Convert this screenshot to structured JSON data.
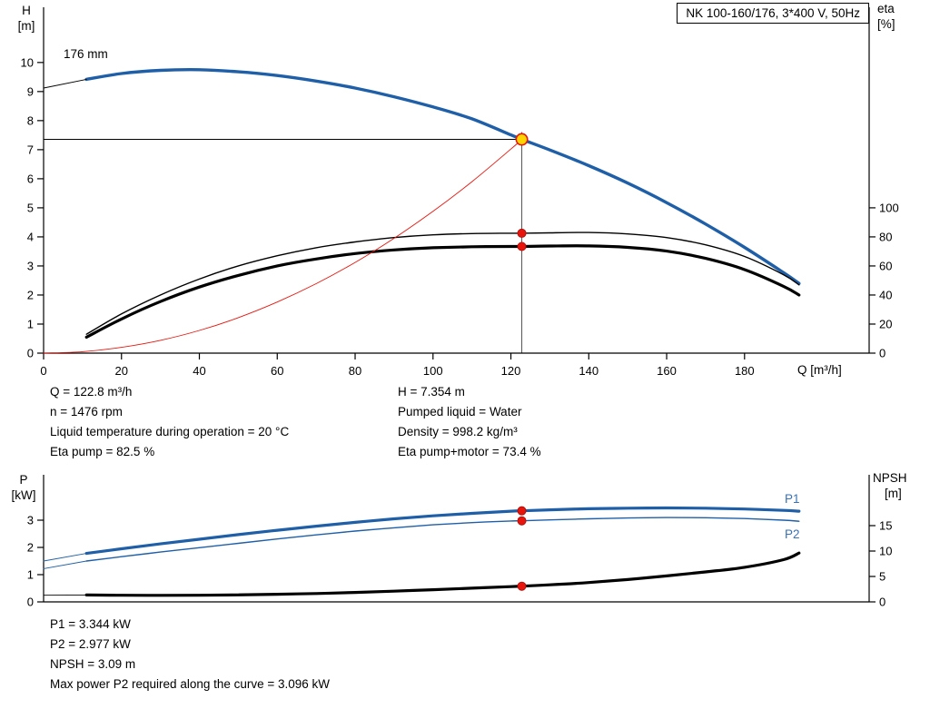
{
  "header": {
    "title_box": "NK 100-160/176, 3*400 V, 50Hz"
  },
  "top_chart_labels": {
    "y_left_1": "H",
    "y_left_2": "[m]",
    "y_right_1": "eta",
    "y_right_2": "[%]",
    "x_axis": "Q [m³/h]",
    "impeller": "176 mm"
  },
  "bottom_chart_labels": {
    "y_left_1": "P",
    "y_left_2": "[kW]",
    "y_right_1": "NPSH",
    "y_right_2": "[m]",
    "p1": "P1",
    "p2": "P2"
  },
  "operating_point_info": {
    "left": [
      "Q = 122.8 m³/h",
      "n = 1476 rpm",
      "Liquid temperature during operation = 20 °C",
      "Eta pump = 82.5 %"
    ],
    "right": [
      "H = 7.354 m",
      "Pumped liquid = Water",
      "Density = 998.2 kg/m³",
      "Eta pump+motor = 73.4 %"
    ]
  },
  "power_info": [
    "P1 = 3.344 kW",
    "P2 = 2.977 kW",
    "NPSH = 3.09 m",
    "Max power P2 required along the curve = 3.096 kW"
  ],
  "colors": {
    "curve_blue": "#1f5fa8",
    "label_blue": "#3a72b5",
    "red": "#e8150d",
    "red_dark": "#a50d07",
    "yellow": "#ffd400",
    "black": "#000000",
    "crosshair_gray": "#555555"
  },
  "chart_data": [
    {
      "type": "line",
      "title": "NK 100-160/176, 3*400 V, 50Hz",
      "xlabel": "Q [m³/h]",
      "ylabel_left": "H [m]",
      "ylabel_right": "eta [%]",
      "xlim": [
        0,
        212
      ],
      "ylim_left": [
        0,
        11.9
      ],
      "ylim_right": [
        0,
        238
      ],
      "x_ticks": [
        0,
        20,
        40,
        60,
        80,
        100,
        120,
        140,
        160,
        180
      ],
      "y_ticks_left": [
        0,
        1,
        2,
        3,
        4,
        5,
        6,
        7,
        8,
        9,
        10
      ],
      "y_ticks_right": [
        0,
        20,
        40,
        60,
        80,
        100
      ],
      "legend": "none",
      "grid": false,
      "series": [
        {
          "name": "head-176mm",
          "axis": "left",
          "color": "#1f5fa8",
          "width": 3.4,
          "x": [
            11,
            20,
            30,
            40,
            50,
            60,
            70,
            80,
            90,
            100,
            110,
            120,
            122.8,
            130,
            140,
            150,
            160,
            170,
            180,
            190,
            194
          ],
          "y": [
            9.42,
            9.62,
            9.73,
            9.75,
            9.68,
            9.55,
            9.36,
            9.12,
            8.82,
            8.47,
            8.06,
            7.51,
            7.354,
            6.99,
            6.45,
            5.85,
            5.18,
            4.44,
            3.64,
            2.77,
            2.4
          ]
        },
        {
          "name": "head-lead",
          "axis": "left",
          "color": "#000000",
          "width": 0.9,
          "x": [
            0,
            11
          ],
          "y": [
            9.12,
            9.42
          ]
        },
        {
          "name": "eta-pump",
          "axis": "right",
          "color": "#000000",
          "width": 1.4,
          "x": [
            11,
            20,
            30,
            40,
            50,
            60,
            70,
            80,
            90,
            100,
            110,
            120,
            122.8,
            130,
            140,
            150,
            160,
            170,
            180,
            190,
            194
          ],
          "y": [
            13,
            27,
            40,
            51,
            60,
            67,
            72.5,
            76.5,
            79.5,
            81.4,
            82.3,
            82.5,
            82.5,
            82.8,
            83,
            82,
            79.5,
            74.5,
            66.5,
            54,
            47
          ]
        },
        {
          "name": "eta-pump-motor",
          "axis": "right",
          "color": "#000000",
          "width": 3.2,
          "x": [
            11,
            20,
            30,
            40,
            50,
            60,
            70,
            80,
            90,
            100,
            110,
            120,
            122.8,
            130,
            140,
            150,
            160,
            170,
            180,
            190,
            194
          ],
          "y": [
            11,
            23.5,
            35.5,
            45.5,
            53.5,
            60,
            64.8,
            68.5,
            71,
            72.5,
            73.2,
            73.4,
            73.4,
            73.7,
            73.8,
            72.8,
            70.2,
            65.2,
            57.5,
            46,
            40
          ]
        },
        {
          "name": "system-curve",
          "axis": "left",
          "color": "#e8150d",
          "width": 0.9,
          "x": [
            0,
            10,
            20,
            30,
            40,
            50,
            60,
            70,
            80,
            90,
            100,
            110,
            120,
            122.8
          ],
          "y": [
            0,
            0.05,
            0.2,
            0.44,
            0.78,
            1.22,
            1.76,
            2.39,
            3.12,
            3.95,
            4.88,
            5.9,
            7.02,
            7.354
          ]
        }
      ],
      "points": [
        {
          "name": "duty-point",
          "x": 122.8,
          "y": 7.354,
          "axis": "left",
          "style": "duty"
        },
        {
          "name": "eta-pump-point",
          "x": 122.8,
          "y": 82.5,
          "axis": "right",
          "style": "marker"
        },
        {
          "name": "eta-pump-motor-point",
          "x": 122.8,
          "y": 73.4,
          "axis": "right",
          "style": "marker"
        }
      ],
      "crosshair": {
        "x": 122.8,
        "y": 7.354,
        "axis": "left"
      }
    },
    {
      "type": "line",
      "title": "",
      "xlabel": "",
      "ylabel_left": "P [kW]",
      "ylabel_right": "NPSH [m]",
      "xlim": [
        0,
        212
      ],
      "ylim_left": [
        0,
        4.667
      ],
      "ylim_right": [
        0,
        25
      ],
      "x_ticks": [],
      "y_ticks_left": [
        0,
        1,
        2,
        3
      ],
      "y_ticks_right": [
        0,
        5,
        10,
        15
      ],
      "legend": "inline-labels P1 P2",
      "grid": false,
      "series": [
        {
          "name": "p1",
          "axis": "left",
          "color": "#1f5fa8",
          "width": 3.2,
          "x": [
            11,
            20,
            30,
            40,
            50,
            60,
            70,
            80,
            90,
            100,
            110,
            120,
            122.8,
            130,
            140,
            150,
            160,
            170,
            180,
            190,
            194
          ],
          "y": [
            1.78,
            1.95,
            2.13,
            2.3,
            2.47,
            2.63,
            2.78,
            2.92,
            3.05,
            3.16,
            3.25,
            3.33,
            3.344,
            3.38,
            3.42,
            3.44,
            3.45,
            3.44,
            3.41,
            3.36,
            3.33
          ]
        },
        {
          "name": "p1-lead",
          "axis": "left",
          "color": "#1f5fa8",
          "width": 0.9,
          "x": [
            0,
            11
          ],
          "y": [
            1.5,
            1.78
          ]
        },
        {
          "name": "p2",
          "axis": "left",
          "color": "#1f5fa8",
          "width": 1.4,
          "x": [
            11,
            20,
            30,
            40,
            50,
            60,
            70,
            80,
            90,
            100,
            110,
            120,
            122.8,
            130,
            140,
            150,
            160,
            170,
            180,
            190,
            194
          ],
          "y": [
            1.5,
            1.66,
            1.83,
            1.99,
            2.15,
            2.31,
            2.46,
            2.6,
            2.72,
            2.83,
            2.91,
            2.97,
            2.977,
            3.01,
            3.05,
            3.08,
            3.096,
            3.09,
            3.06,
            3.0,
            2.96
          ]
        },
        {
          "name": "p2-lead",
          "axis": "left",
          "color": "#1f5fa8",
          "width": 0.9,
          "x": [
            0,
            11
          ],
          "y": [
            1.22,
            1.5
          ]
        },
        {
          "name": "npsh",
          "axis": "right",
          "color": "#000000",
          "width": 3.2,
          "x": [
            11,
            20,
            30,
            40,
            50,
            60,
            70,
            80,
            90,
            100,
            110,
            120,
            122.8,
            130,
            140,
            150,
            160,
            170,
            180,
            190,
            194
          ],
          "y": [
            1.35,
            1.3,
            1.28,
            1.3,
            1.38,
            1.5,
            1.65,
            1.85,
            2.1,
            2.4,
            2.7,
            3.0,
            3.09,
            3.35,
            3.8,
            4.4,
            5.1,
            5.9,
            6.8,
            8.3,
            9.6
          ]
        },
        {
          "name": "npsh-lead",
          "axis": "right",
          "color": "#000000",
          "width": 0.9,
          "x": [
            0,
            11
          ],
          "y": [
            1.3,
            1.35
          ]
        }
      ],
      "points": [
        {
          "name": "p1-point",
          "x": 122.8,
          "y": 3.344,
          "axis": "left",
          "style": "marker"
        },
        {
          "name": "p2-point",
          "x": 122.8,
          "y": 2.977,
          "axis": "left",
          "style": "marker"
        },
        {
          "name": "npsh-point",
          "x": 122.8,
          "y": 3.09,
          "axis": "right",
          "style": "marker"
        }
      ]
    }
  ]
}
